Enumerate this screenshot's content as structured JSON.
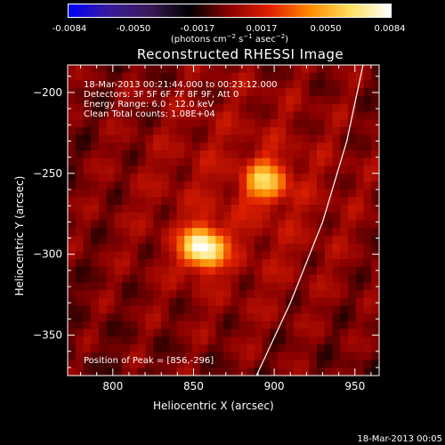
{
  "colorbar": {
    "ticks": [
      "-0.0084",
      "-0.0050",
      "-0.0017",
      "0.0017",
      "0.0050",
      "0.0084"
    ],
    "units": "(photons cm-2 s-1 asec-2)",
    "colors": [
      "#0000ff",
      "#3a1a9a",
      "#3a1a5a",
      "#000000",
      "#8a0000",
      "#e02000",
      "#ff8a00",
      "#ffe060",
      "#ffffff"
    ]
  },
  "footer": {
    "timestamp": "18-Mar-2013 00:05"
  },
  "chart_data": {
    "type": "heatmap",
    "title": "Reconstructed RHESSI Image",
    "xlabel": "Heliocentric X (arcsec)",
    "ylabel": "Heliocentric Y (arcsec)",
    "xlim": [
      772,
      965
    ],
    "ylim": [
      -375,
      -183
    ],
    "xticks": [
      800,
      850,
      900,
      950
    ],
    "yticks": [
      -200,
      -250,
      -300,
      -350
    ],
    "annotations": [
      "18-Mar-2013 00:21:44.000 to 00:23:12.000",
      "Detectors: 3F 5F 6F 7F 8F 9F, Att 0",
      "Energy Range: 6.0 - 12.0 keV",
      "Clean    Total counts: 1.08E+04"
    ],
    "peak_label": "Position of Peak = [856,-296]",
    "sources": [
      {
        "x": 856,
        "y": -296,
        "peak": 0.0084,
        "width_arcsec": 9
      },
      {
        "x": 895,
        "y": -255,
        "peak": 0.0052,
        "width_arcsec": 9
      }
    ],
    "limb_curve": [
      [
        889,
        -375
      ],
      [
        910,
        -330
      ],
      [
        930,
        -280
      ],
      [
        945,
        -230
      ],
      [
        955,
        -183
      ]
    ]
  }
}
